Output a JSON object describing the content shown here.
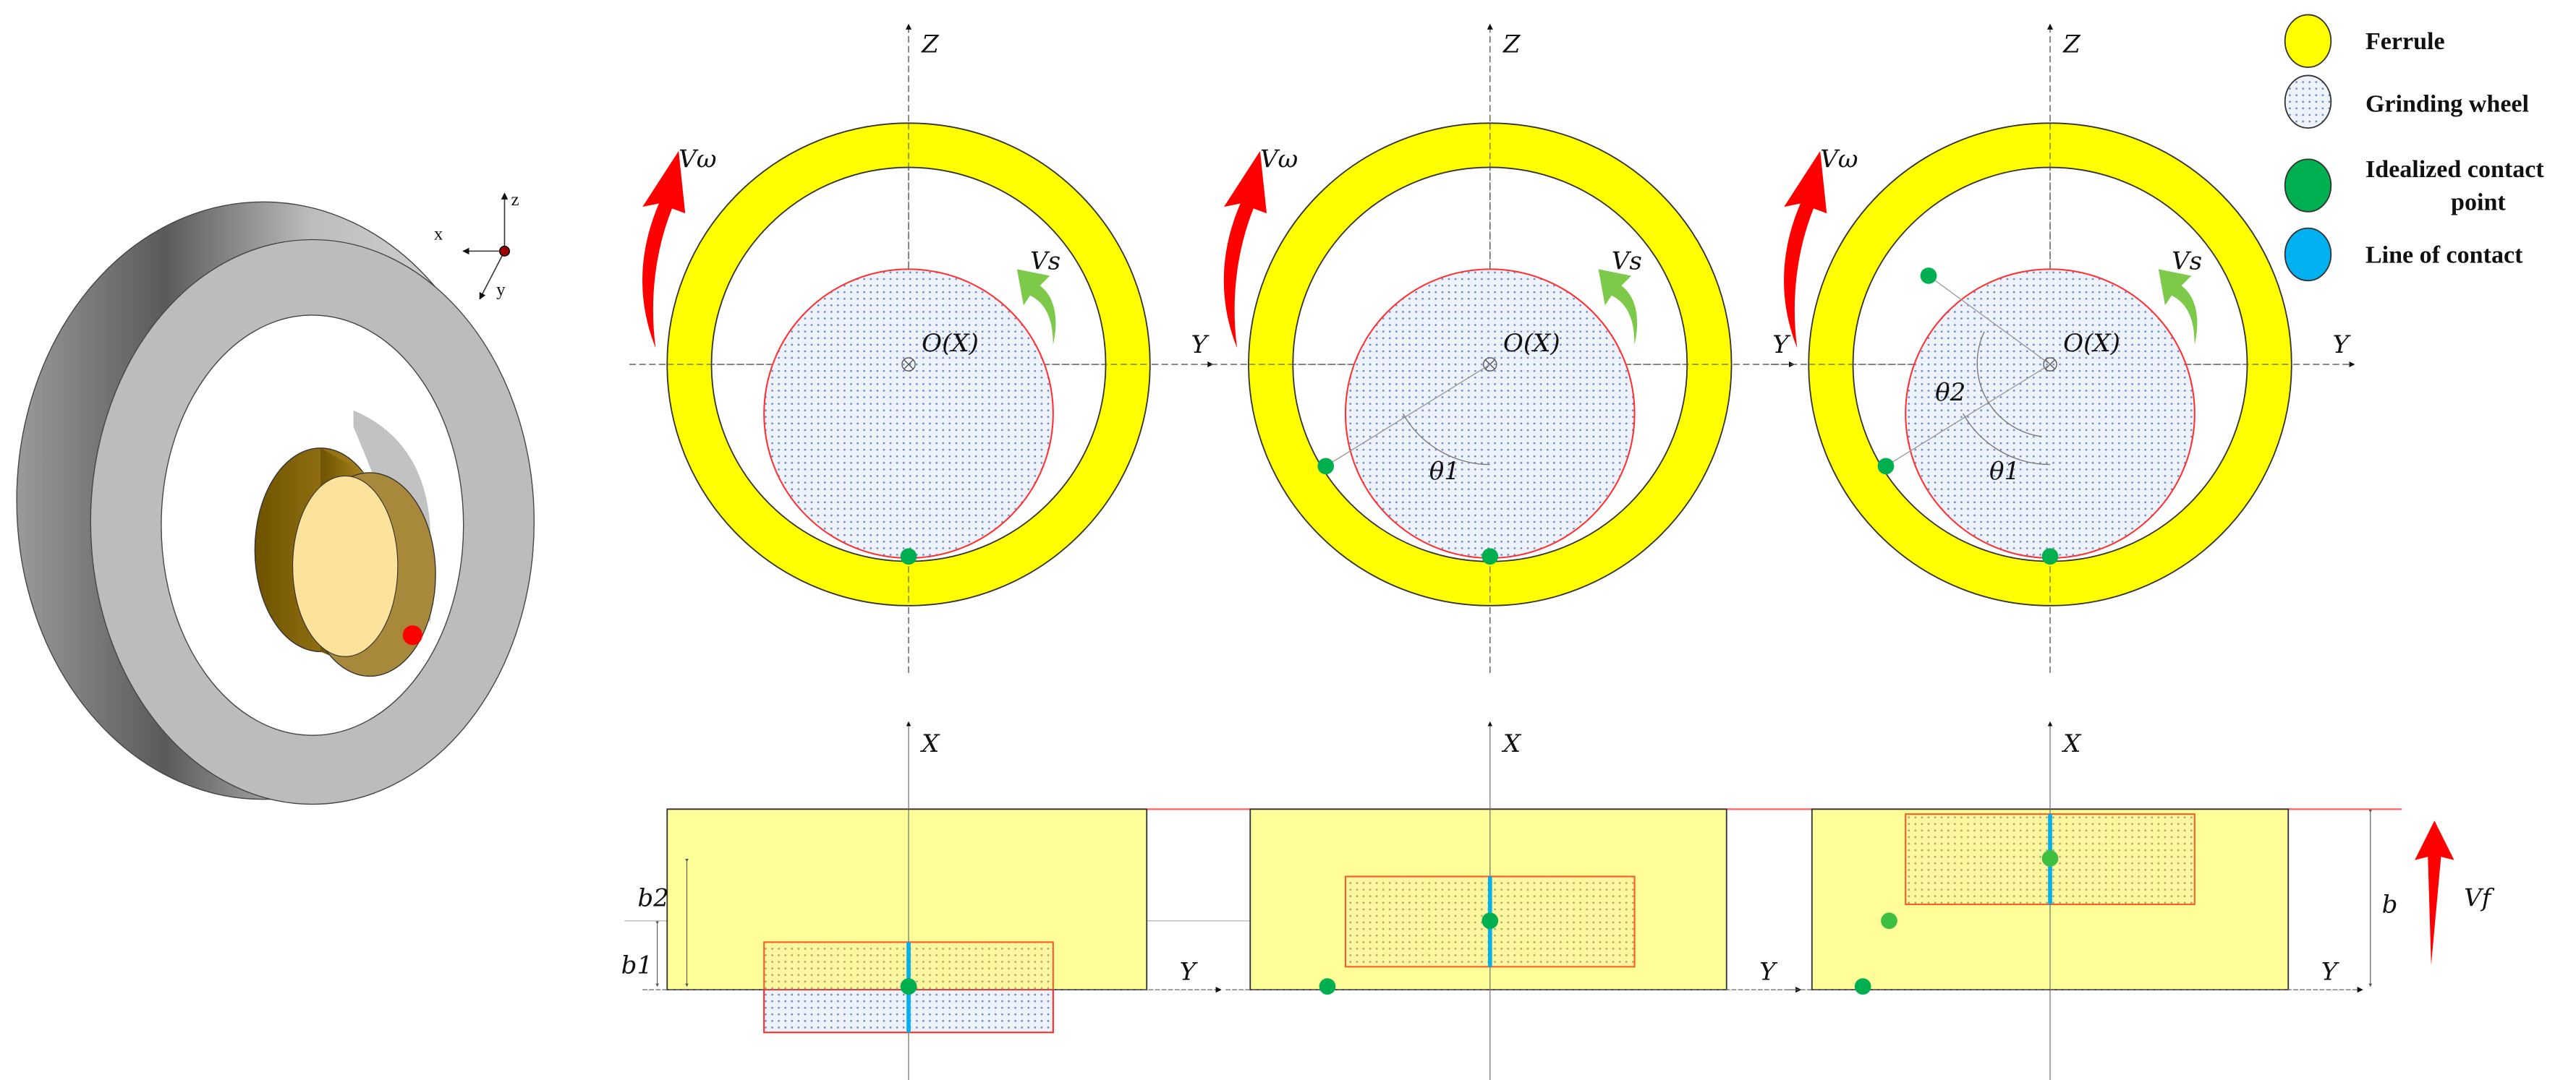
{
  "legend": [
    {
      "label": "Ferrule",
      "color": "#ffff00"
    },
    {
      "label": "Grinding wheel",
      "color": "#dde6f5"
    },
    {
      "label_line1": "Idealized contact",
      "label_line2": "point",
      "color": "#00b050"
    },
    {
      "label": "Line of contact",
      "color": "#00b0f0"
    }
  ],
  "triad": {
    "x": "x",
    "y": "y",
    "z": "z"
  },
  "labels": {
    "z_axis": "Z",
    "y_axis": "Y",
    "x_axis": "X",
    "origin": "O(X)",
    "v_omega": "Vω",
    "v_s": "Vs",
    "v_f": "Vf",
    "theta1": "θ1",
    "theta2": "θ2",
    "b": "b",
    "b1": "b1",
    "b2": "b2"
  },
  "colors": {
    "ferrule": "#ffff00",
    "ferrule_side": "#ffff99",
    "wheel_outline": "#ff3030",
    "contact_point": "#00b050",
    "contact_line": "#00b0f0",
    "feed_arrow": "#ff0000",
    "wheel_arrow": "#7dc94a"
  }
}
